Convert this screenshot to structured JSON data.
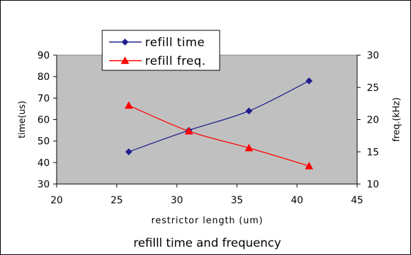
{
  "chart_data": {
    "type": "line",
    "title": "",
    "caption": "refilll time and frequency",
    "xlabel": "restrictor length (um)",
    "ylabel": "time(us)",
    "y2label": "freq.(kHz)",
    "xlim": [
      20,
      45
    ],
    "xticks": [
      20,
      25,
      30,
      35,
      40,
      45
    ],
    "ylim": [
      30,
      90
    ],
    "yticks": [
      30,
      40,
      50,
      60,
      70,
      80,
      90
    ],
    "y2lim": [
      10,
      30
    ],
    "y2ticks": [
      10,
      15,
      20,
      25,
      30
    ],
    "grid": false,
    "legend_position": "top-left",
    "plot_background": "#C0C0C0",
    "series": [
      {
        "name": "refill time",
        "axis": "left",
        "color": "#1F1F8F",
        "marker": "diamond",
        "x": [
          26,
          31,
          36,
          41
        ],
        "values": [
          45,
          55,
          64,
          78
        ]
      },
      {
        "name": "refill freq.",
        "axis": "right",
        "color": "#FF0000",
        "marker": "triangle",
        "x": [
          26,
          31,
          36,
          41
        ],
        "values": [
          22.2,
          18.2,
          15.6,
          12.8
        ]
      }
    ]
  }
}
